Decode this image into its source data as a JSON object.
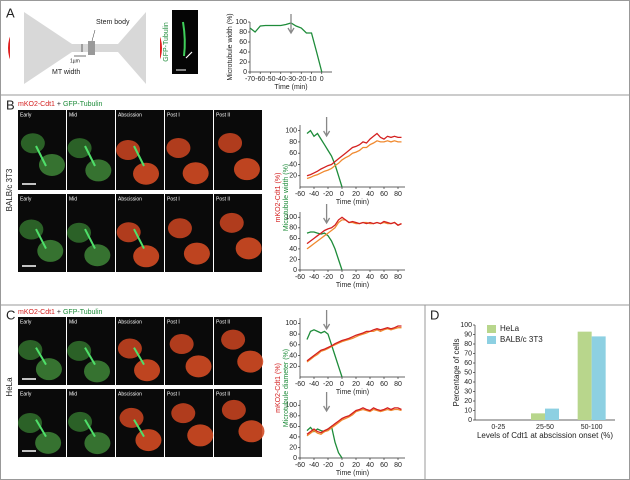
{
  "panel_a": {
    "letter": "A",
    "stem_body": "Stem body",
    "mt_width": "MT width",
    "scale": "1µm",
    "channel": "GFP-Tubulin"
  },
  "panel_b": {
    "letter": "B",
    "legend": [
      "mKO2-Cdt1",
      "+",
      "GFP-Tubulin"
    ],
    "cell_line": "BALB/c 3T3",
    "stages": [
      "Early",
      "Mid",
      "Abscission",
      "Post I",
      "Post II"
    ]
  },
  "panel_c": {
    "letter": "C",
    "legend": [
      "mKO2-Cdt1",
      "+",
      "GFP-Tubulin"
    ],
    "cell_line": "HeLa",
    "stages": [
      "Early",
      "Mid",
      "Abscission",
      "Post I",
      "Post II"
    ]
  },
  "panel_d": {
    "letter": "D"
  },
  "chart_data": [
    {
      "type": "line",
      "xlabel": "Time (min)",
      "ylabel": "Microtubule width (%)",
      "x": [
        -70,
        -65,
        -60,
        -55,
        -50,
        -45,
        -40,
        -35,
        -30,
        -25,
        -20,
        -15,
        -10,
        -5,
        0
      ],
      "xlim": [
        -70,
        10
      ],
      "xticks": [
        -70,
        -60,
        -50,
        -40,
        -30,
        -20,
        -10,
        0
      ],
      "ylim": [
        0,
        100
      ],
      "yticks": [
        0,
        20,
        40,
        60,
        80,
        100
      ],
      "arrow_x": -30,
      "series": [
        {
          "color": "#1e8c3a",
          "values": [
            88,
            80,
            92,
            93,
            93,
            93,
            93,
            95,
            98,
            92,
            88,
            78,
            78,
            40,
            0
          ]
        }
      ]
    },
    {
      "type": "line",
      "xlabel": "Time (min)",
      "x": [
        -50,
        -45,
        -40,
        -35,
        -30,
        -25,
        -20,
        -15,
        -10,
        -5,
        0,
        5,
        10,
        15,
        20,
        25,
        30,
        35,
        40,
        45,
        50,
        55,
        60,
        65,
        70,
        75,
        80,
        85
      ],
      "xlim": [
        -60,
        90
      ],
      "xticks": [
        -60,
        -40,
        -20,
        0,
        20,
        40,
        60,
        80
      ],
      "ylim": [
        0,
        110
      ],
      "yticks": [
        20,
        40,
        60,
        80,
        100
      ],
      "arrow_x": -22,
      "series": [
        {
          "color": "#1e8c3a",
          "values": [
            95,
            100,
            90,
            95,
            85,
            75,
            65,
            55,
            40,
            20,
            0,
            null,
            null,
            null,
            null,
            null,
            null,
            null,
            null,
            null,
            null,
            null,
            null,
            null,
            null,
            null,
            null,
            null
          ]
        },
        {
          "color": "#f08a30",
          "values": [
            15,
            17,
            20,
            22,
            25,
            28,
            30,
            33,
            38,
            42,
            48,
            52,
            55,
            60,
            62,
            65,
            70,
            70,
            75,
            78,
            82,
            80,
            80,
            82,
            80,
            82,
            80,
            80
          ]
        },
        {
          "color": "#d42020",
          "values": [
            20,
            22,
            25,
            28,
            32,
            35,
            38,
            40,
            45,
            50,
            55,
            60,
            65,
            70,
            72,
            75,
            80,
            78,
            85,
            90,
            95,
            88,
            85,
            90,
            88,
            90,
            88,
            88
          ]
        }
      ]
    },
    {
      "type": "line",
      "xlabel": "Time (min)",
      "ylabel": [
        "mKO2-Cdt1 (%)",
        "Microtubule width (%)"
      ],
      "x": [
        -50,
        -45,
        -40,
        -35,
        -30,
        -25,
        -20,
        -15,
        -10,
        -5,
        0,
        5,
        10,
        15,
        20,
        25,
        30,
        35,
        40,
        45,
        50,
        55,
        60,
        65,
        70,
        75,
        80,
        85
      ],
      "xlim": [
        -60,
        90
      ],
      "xticks": [
        -60,
        -40,
        -20,
        0,
        20,
        40,
        60,
        80
      ],
      "ylim": [
        0,
        110
      ],
      "yticks": [
        0,
        20,
        40,
        60,
        80,
        100
      ],
      "arrow_x": -22,
      "series": [
        {
          "color": "#1e8c3a",
          "values": [
            70,
            72,
            72,
            70,
            68,
            70,
            65,
            55,
            40,
            20,
            0,
            null,
            null,
            null,
            null,
            null,
            null,
            null,
            null,
            null,
            null,
            null,
            null,
            null,
            null,
            null,
            null,
            null
          ]
        },
        {
          "color": "#f08a30",
          "values": [
            40,
            45,
            50,
            55,
            60,
            65,
            70,
            75,
            80,
            90,
            95,
            95,
            90,
            90,
            88,
            88,
            90,
            90,
            88,
            88,
            90,
            88,
            90,
            88,
            88,
            90,
            85,
            88
          ]
        },
        {
          "color": "#d42020",
          "values": [
            50,
            55,
            60,
            65,
            70,
            75,
            78,
            80,
            85,
            95,
            100,
            95,
            90,
            92,
            90,
            88,
            90,
            88,
            90,
            88,
            90,
            88,
            92,
            90,
            88,
            90,
            85,
            88
          ]
        }
      ]
    },
    {
      "type": "line",
      "xlabel": "Time (min)",
      "x": [
        -50,
        -45,
        -40,
        -35,
        -30,
        -25,
        -20,
        -15,
        -10,
        -5,
        0,
        5,
        10,
        15,
        20,
        25,
        30,
        35,
        40,
        45,
        50,
        55,
        60,
        65,
        70,
        75,
        80,
        85
      ],
      "xlim": [
        -60,
        90
      ],
      "xticks": [
        -60,
        -40,
        -20,
        0,
        20,
        40,
        60,
        80
      ],
      "ylim": [
        0,
        110
      ],
      "yticks": [
        20,
        40,
        60,
        80,
        100
      ],
      "arrow_x": -22,
      "series": [
        {
          "color": "#1e8c3a",
          "values": [
            70,
            85,
            88,
            85,
            82,
            85,
            80,
            60,
            40,
            20,
            0,
            null,
            null,
            null,
            null,
            null,
            null,
            null,
            null,
            null,
            null,
            null,
            null,
            null,
            null,
            null,
            null,
            null
          ]
        },
        {
          "color": "#f08a30",
          "values": [
            28,
            33,
            38,
            42,
            48,
            50,
            53,
            57,
            60,
            63,
            66,
            68,
            70,
            72,
            75,
            78,
            80,
            82,
            85,
            85,
            88,
            85,
            88,
            90,
            88,
            90,
            92,
            92
          ]
        },
        {
          "color": "#d42020",
          "values": [
            30,
            35,
            40,
            45,
            50,
            52,
            55,
            58,
            62,
            65,
            68,
            70,
            72,
            75,
            78,
            80,
            82,
            85,
            85,
            88,
            90,
            88,
            90,
            92,
            90,
            92,
            95,
            95
          ]
        }
      ]
    },
    {
      "type": "line",
      "xlabel": "Time (min)",
      "ylabel": [
        "mKO2-Cdt1 (%)",
        "Microtubule diameter (%)"
      ],
      "x": [
        -50,
        -45,
        -40,
        -35,
        -30,
        -25,
        -20,
        -15,
        -10,
        -5,
        0,
        5,
        10,
        15,
        20,
        25,
        30,
        35,
        40,
        45,
        50,
        55,
        60,
        65,
        70,
        75,
        80,
        85
      ],
      "xlim": [
        -60,
        90
      ],
      "xticks": [
        -60,
        -40,
        -20,
        0,
        20,
        40,
        60,
        80
      ],
      "ylim": [
        0,
        110
      ],
      "yticks": [
        0,
        20,
        40,
        60,
        80,
        100
      ],
      "arrow_x": -22,
      "series": [
        {
          "color": "#1e8c3a",
          "values": [
            52,
            58,
            50,
            55,
            52,
            50,
            55,
            60,
            30,
            10,
            0,
            null,
            null,
            null,
            null,
            null,
            null,
            null,
            null,
            null,
            null,
            null,
            null,
            null,
            null,
            null,
            null,
            null
          ]
        },
        {
          "color": "#f08a30",
          "values": [
            42,
            47,
            52,
            47,
            45,
            50,
            52,
            57,
            62,
            67,
            72,
            75,
            78,
            82,
            88,
            90,
            92,
            90,
            88,
            92,
            90,
            88,
            90,
            92,
            90,
            92,
            92,
            90
          ]
        },
        {
          "color": "#d42020",
          "values": [
            45,
            50,
            55,
            50,
            48,
            52,
            55,
            60,
            65,
            70,
            75,
            78,
            80,
            85,
            90,
            92,
            95,
            92,
            90,
            95,
            92,
            90,
            92,
            95,
            92,
            95,
            95,
            92
          ]
        }
      ]
    },
    {
      "type": "bar",
      "xlabel": "Levels of Cdt1 at abscission onset (%)",
      "ylabel": "Percentage of cells",
      "categories": [
        "0-25",
        "25-50",
        "50-100"
      ],
      "ylim": [
        0,
        100
      ],
      "yticks": [
        0,
        10,
        20,
        30,
        40,
        50,
        60,
        70,
        80,
        90,
        100
      ],
      "legend": "upper-left",
      "series": [
        {
          "name": "HeLa",
          "color": "#b8d68c",
          "values": [
            0,
            7,
            93
          ]
        },
        {
          "name": "BALB/c 3T3",
          "color": "#8dd0e2",
          "values": [
            0,
            12,
            88
          ]
        }
      ]
    }
  ]
}
